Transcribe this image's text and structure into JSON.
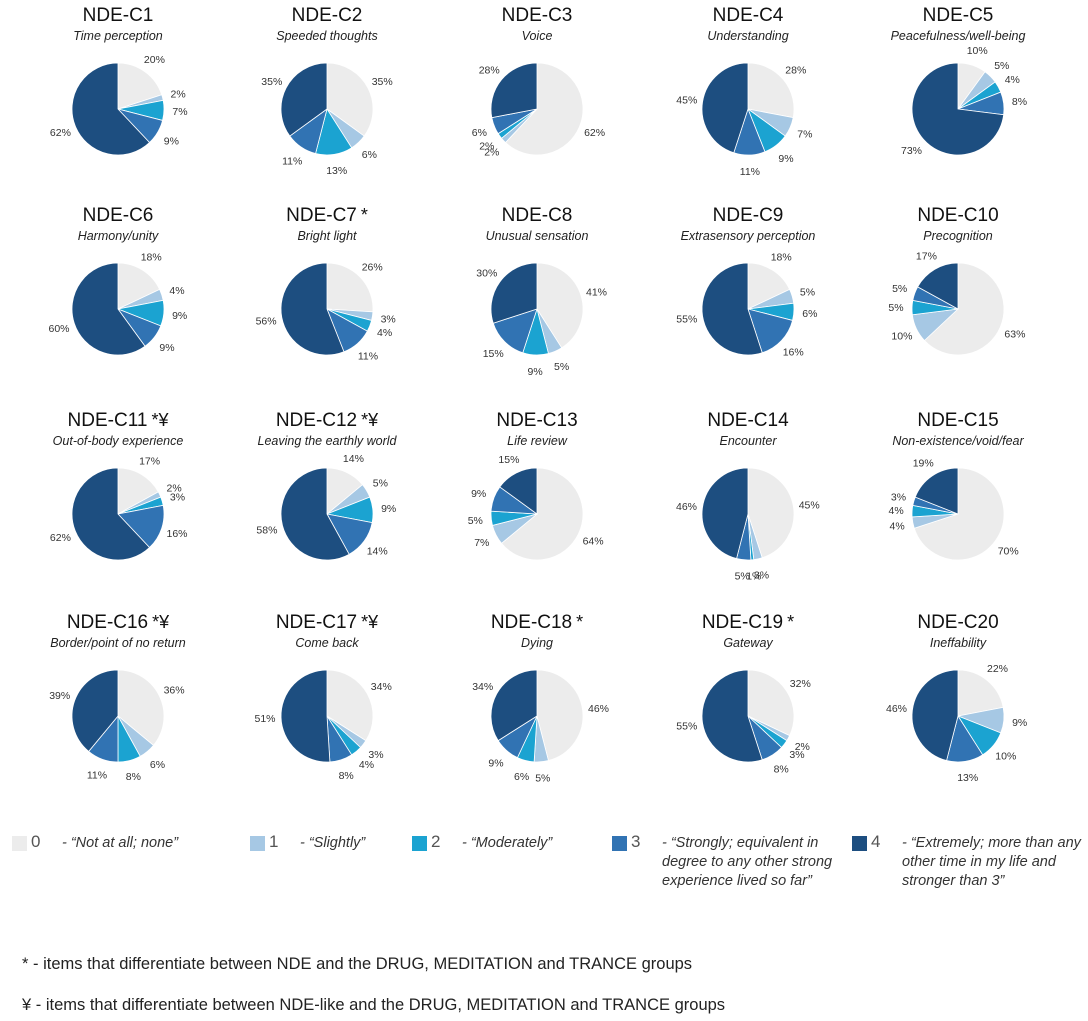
{
  "colors": {
    "0": "#ececec",
    "1": "#a6c8e4",
    "2": "#1ba3d1",
    "3": "#3173b3",
    "4": "#1d4e80"
  },
  "chart_data": {
    "type": "pie",
    "category_order": [
      "0",
      "1",
      "2",
      "3",
      "4"
    ],
    "panels": [
      {
        "title": "NDE-C1",
        "mark": "",
        "subtitle": "Time perception",
        "values": [
          20,
          2,
          7,
          9,
          62
        ]
      },
      {
        "title": "NDE-C2",
        "mark": "",
        "subtitle": "Speeded thoughts",
        "values": [
          35,
          6,
          13,
          11,
          35
        ]
      },
      {
        "title": "NDE-C3",
        "mark": "",
        "subtitle": "Voice",
        "values": [
          62,
          2,
          2,
          6,
          28
        ]
      },
      {
        "title": "NDE-C4",
        "mark": "",
        "subtitle": "Understanding",
        "values": [
          28,
          7,
          9,
          11,
          45
        ]
      },
      {
        "title": "NDE-C5",
        "mark": "",
        "subtitle": "Peacefulness/well-being",
        "values": [
          10,
          5,
          4,
          8,
          73
        ]
      },
      {
        "title": "NDE-C6",
        "mark": "",
        "subtitle": "Harmony/unity",
        "values": [
          18,
          4,
          9,
          9,
          60
        ]
      },
      {
        "title": "NDE-C7",
        "mark": "*",
        "subtitle": "Bright light",
        "values": [
          26,
          3,
          4,
          11,
          56
        ]
      },
      {
        "title": "NDE-C8",
        "mark": "",
        "subtitle": "Unusual sensation",
        "values": [
          41,
          5,
          9,
          15,
          30
        ]
      },
      {
        "title": "NDE-C9",
        "mark": "",
        "subtitle": "Extrasensory perception",
        "values": [
          18,
          5,
          6,
          16,
          55
        ]
      },
      {
        "title": "NDE-C10",
        "mark": "",
        "subtitle": "Precognition",
        "values": [
          63,
          10,
          5,
          5,
          17
        ]
      },
      {
        "title": "NDE-C11",
        "mark": "*¥",
        "subtitle": "Out-of-body experience",
        "values": [
          17,
          2,
          3,
          16,
          62
        ]
      },
      {
        "title": "NDE-C12",
        "mark": "*¥",
        "subtitle": "Leaving the earthly world",
        "values": [
          14,
          5,
          9,
          14,
          58
        ]
      },
      {
        "title": "NDE-C13",
        "mark": "",
        "subtitle": "Life review",
        "values": [
          64,
          7,
          5,
          9,
          15
        ]
      },
      {
        "title": "NDE-C14",
        "mark": "",
        "subtitle": "Encounter",
        "values": [
          45,
          3,
          1,
          5,
          46
        ]
      },
      {
        "title": "NDE-C15",
        "mark": "",
        "subtitle": "Non-existence/void/fear",
        "values": [
          70,
          4,
          4,
          3,
          19
        ]
      },
      {
        "title": "NDE-C16",
        "mark": "*¥",
        "subtitle": "Border/point of no return",
        "values": [
          36,
          6,
          8,
          11,
          39
        ]
      },
      {
        "title": "NDE-C17",
        "mark": "*¥",
        "subtitle": "Come back",
        "values": [
          34,
          3,
          4,
          8,
          51
        ]
      },
      {
        "title": "NDE-C18",
        "mark": "*",
        "subtitle": "Dying",
        "values": [
          46,
          5,
          6,
          9,
          34
        ]
      },
      {
        "title": "NDE-C19",
        "mark": "*",
        "subtitle": "Gateway",
        "values": [
          32,
          2,
          3,
          8,
          55
        ]
      },
      {
        "title": "NDE-C20",
        "mark": "",
        "subtitle": "Ineffability",
        "values": [
          22,
          9,
          10,
          13,
          46
        ]
      }
    ]
  },
  "legend": [
    {
      "code": "0",
      "label": "- “Not at all; none”"
    },
    {
      "code": "1",
      "label": "- “Slightly”"
    },
    {
      "code": "2",
      "label": "- “Moderately”"
    },
    {
      "code": "3",
      "label": "- “Strongly; equivalent in degree to any other strong experience lived so far”"
    },
    {
      "code": "4",
      "label": "- “Extremely; more than any other time in my life and stronger than 3”"
    }
  ],
  "notes": {
    "asterisk": "* - items that differentiate between NDE and the DRUG, MEDITATION and TRANCE groups",
    "yen": "¥ - items that differentiate between NDE-like and the DRUG, MEDITATION and TRANCE groups"
  }
}
